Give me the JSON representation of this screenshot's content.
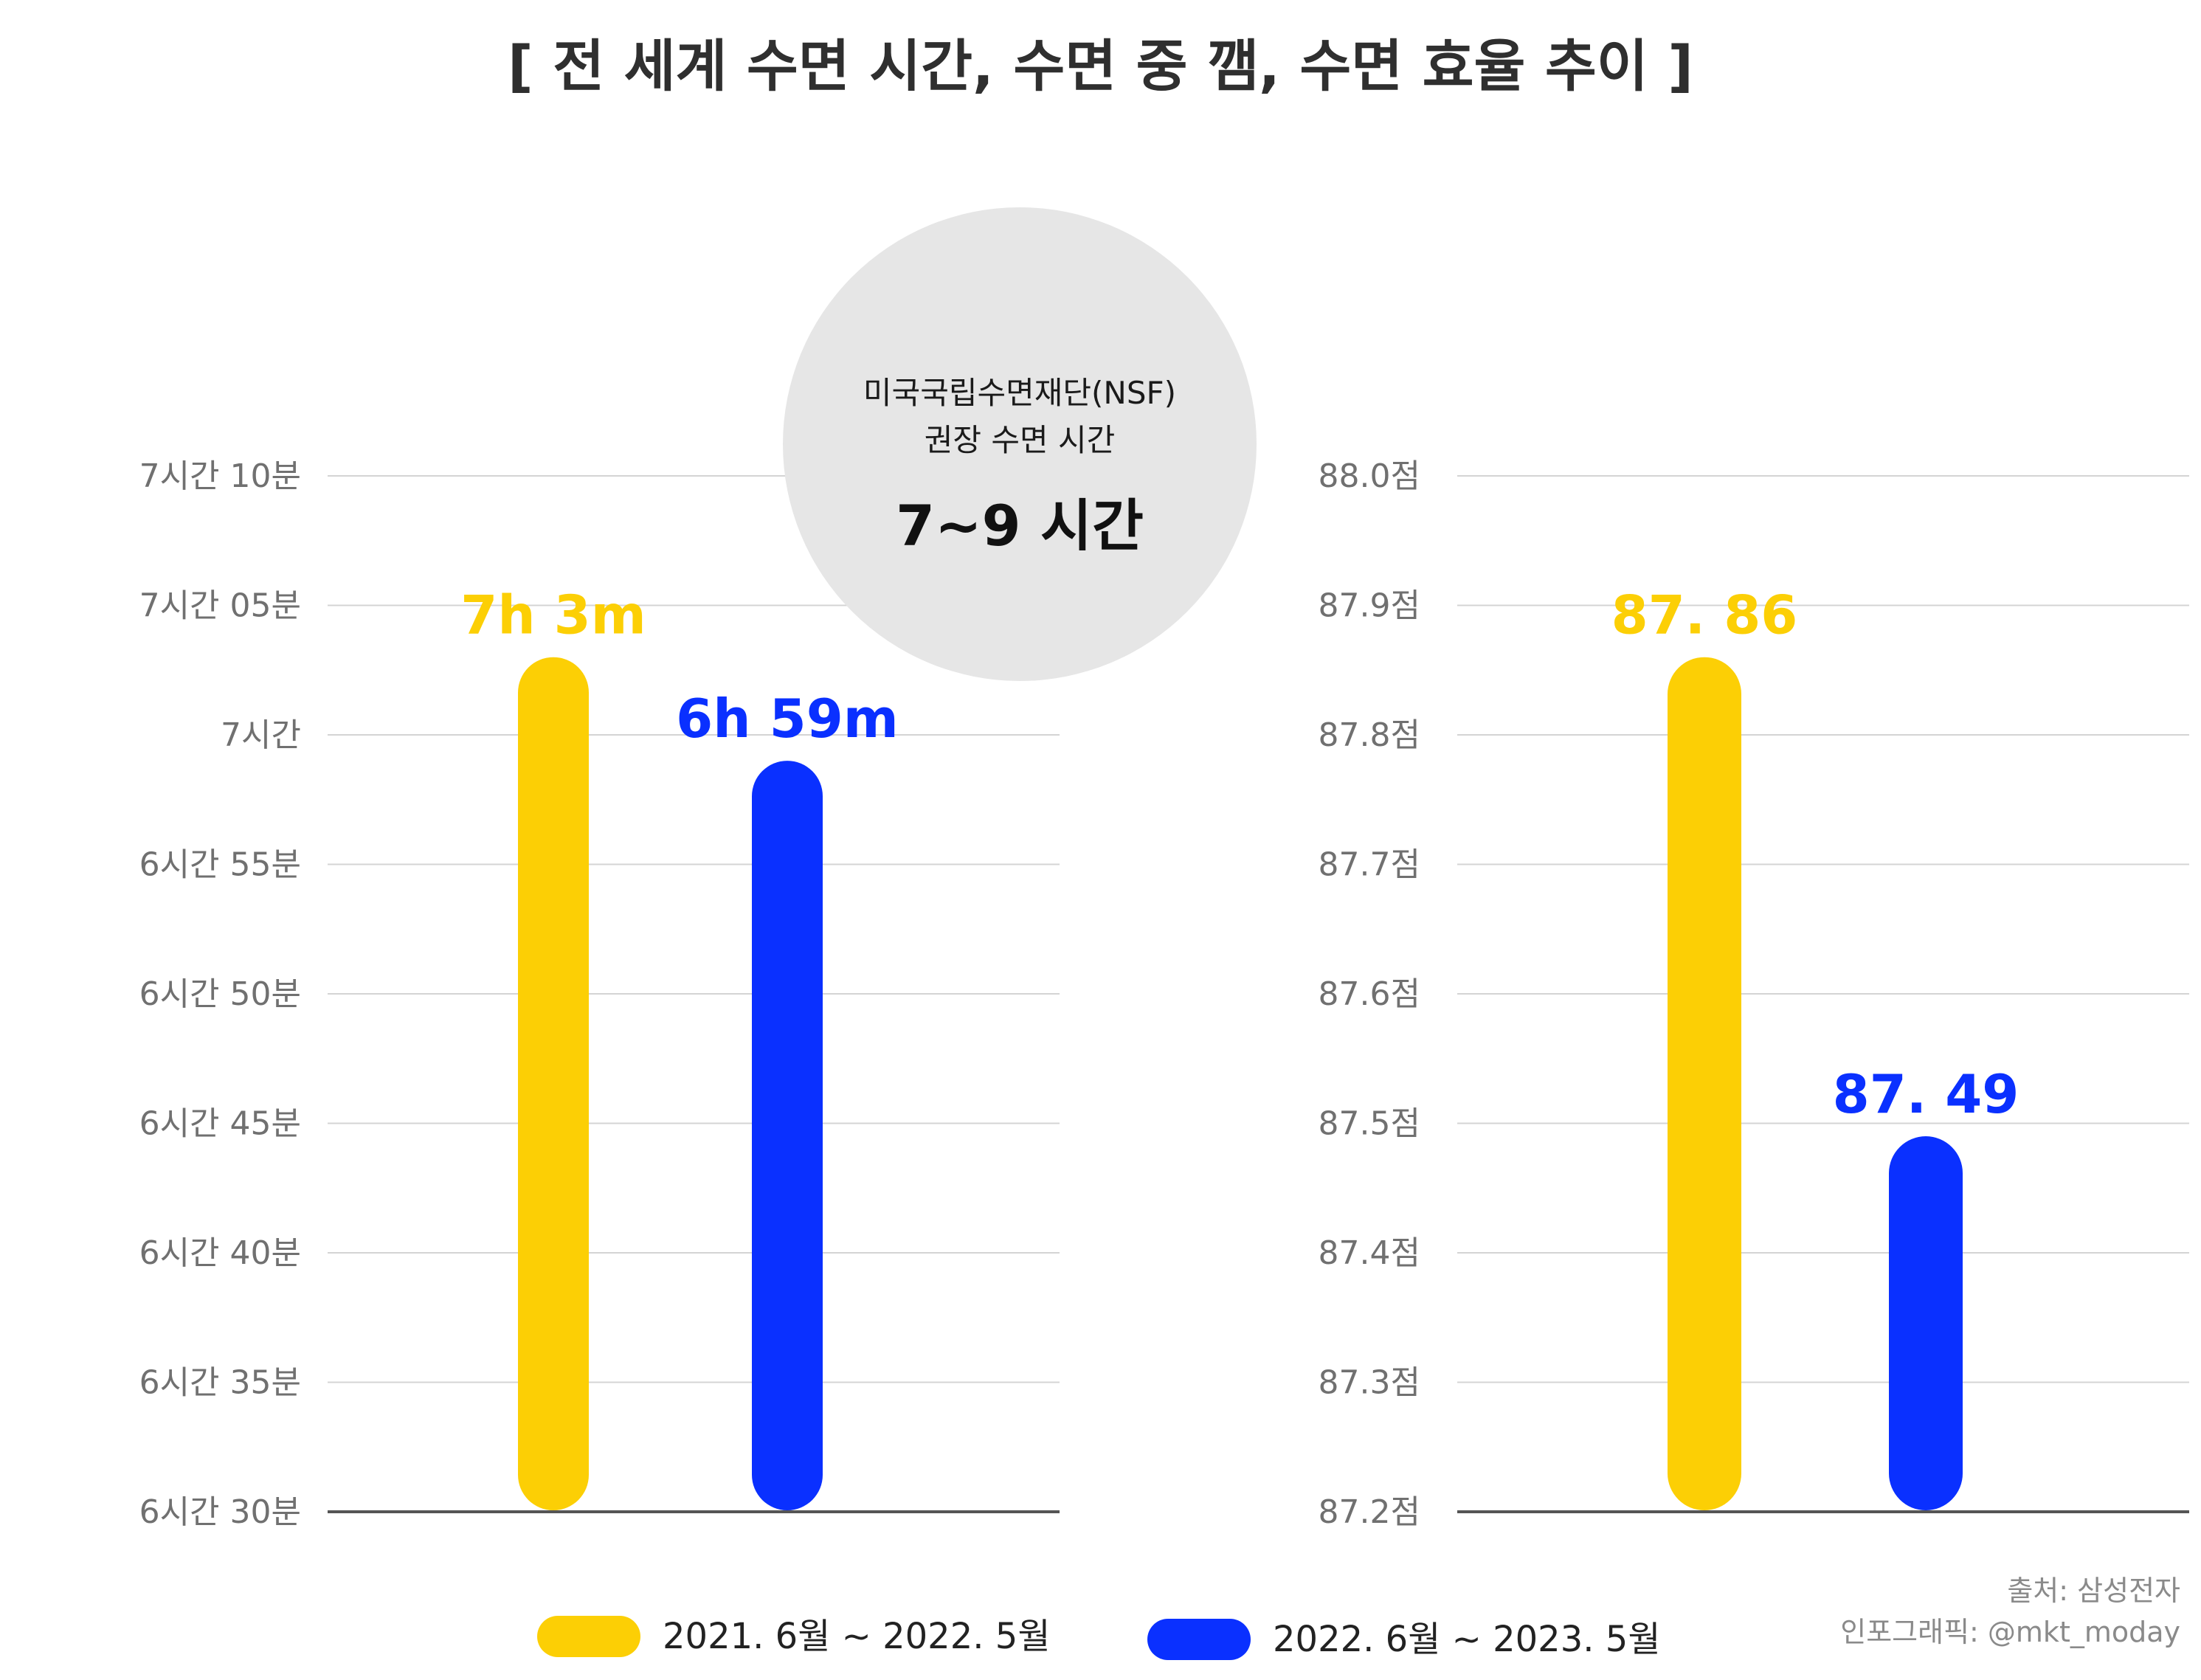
{
  "title": "[ 전 세계 수면 시간, 수면 중 깸, 수면 효율 추이 ]",
  "colors": {
    "period1": "#FCCF05",
    "period2": "#0A30FF",
    "circle": "#E6E6E6"
  },
  "recommendation": {
    "line1": "미국국립수면재단(NSF)",
    "line2": "권장 수면 시간",
    "value": "7~9 시간"
  },
  "legend": [
    {
      "label": "2021. 6월 ~ 2022. 5월",
      "color": "#FCCF05"
    },
    {
      "label": "2022. 6월 ~ 2023. 5월",
      "color": "#0A30FF"
    }
  ],
  "source": {
    "line1": "출처: 삼성전자",
    "line2": "인포그래픽: @mkt_moday"
  },
  "chart_data": [
    {
      "type": "bar",
      "ylabel": "",
      "ylim": [
        390,
        430
      ],
      "tick_values": [
        390,
        395,
        400,
        405,
        410,
        415,
        420,
        425,
        430
      ],
      "tick_labels": [
        "6시간 30분",
        "6시간 35분",
        "6시간 40분",
        "6시간 45분",
        "6시간 50분",
        "6시간 55분",
        "7시간",
        "7시간 05분",
        "7시간 10분"
      ],
      "grid": true,
      "series": [
        {
          "name": "2021. 6월 ~ 2022. 5월",
          "value": 423,
          "label": "7h 3m"
        },
        {
          "name": "2022. 6월 ~ 2023. 5월",
          "value": 419,
          "label": "6h 59m"
        }
      ]
    },
    {
      "type": "bar",
      "ylabel": "",
      "ylim": [
        87.2,
        88.0
      ],
      "tick_values": [
        87.2,
        87.3,
        87.4,
        87.5,
        87.6,
        87.7,
        87.8,
        87.9,
        88.0
      ],
      "tick_labels": [
        "87.2점",
        "87.3점",
        "87.4점",
        "87.5점",
        "87.6점",
        "87.7점",
        "87.8점",
        "87.9점",
        "88.0점"
      ],
      "grid": true,
      "series": [
        {
          "name": "2021. 6월 ~ 2022. 5월",
          "value": 87.86,
          "label": "87. 86"
        },
        {
          "name": "2022. 6월 ~ 2023. 5월",
          "value": 87.49,
          "label": "87. 49"
        }
      ]
    }
  ]
}
